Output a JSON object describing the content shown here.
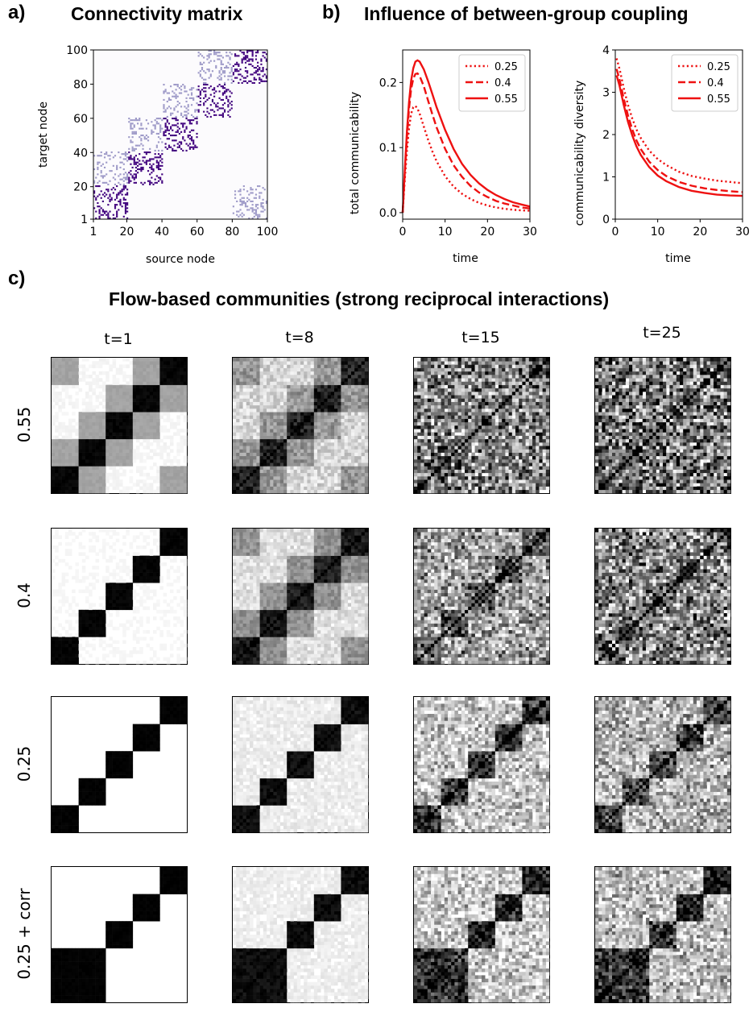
{
  "panels": {
    "a": {
      "letter": "a)",
      "title": "Connectivity matrix"
    },
    "b": {
      "letter": "b)",
      "title": "Influence of between-group coupling"
    },
    "c": {
      "letter": "c)",
      "title": "Flow-based communities (strong reciprocal interactions)"
    }
  },
  "chart_data": [
    {
      "type": "heatmap",
      "id": "connectivity-matrix",
      "title": "Connectivity matrix",
      "xlabel": "source node",
      "ylabel": "target node",
      "x_ticks": [
        "1",
        "20",
        "40",
        "60",
        "80",
        "100"
      ],
      "y_ticks": [
        "1",
        "20",
        "40",
        "60",
        "80",
        "100"
      ],
      "xlim": [
        1,
        100
      ],
      "ylim": [
        1,
        100
      ],
      "n_nodes": 100,
      "n_groups": 5,
      "group_size": 20,
      "colors": {
        "strong": "#3f007d",
        "weak": "#9e9ac8",
        "background": "#fcfbfd"
      }
    },
    {
      "type": "line",
      "id": "total-communicability",
      "xlabel": "time",
      "ylabel": "total communicability",
      "xlim": [
        0,
        30
      ],
      "ylim": [
        -0.01,
        0.25
      ],
      "x_ticks": [
        "0",
        "10",
        "20",
        "30"
      ],
      "y_ticks": [
        "0.0",
        "0.1",
        "0.2"
      ],
      "legend": "top-right",
      "color": "#ee1111",
      "series": [
        {
          "name": "0.25",
          "style": "dotted",
          "x": [
            0,
            0.5,
            1,
            1.5,
            2,
            2.5,
            3,
            3.5,
            4,
            5,
            6,
            7,
            8,
            10,
            12,
            14,
            16,
            18,
            20,
            22,
            24,
            26,
            28,
            30
          ],
          "values": [
            0,
            0.05,
            0.095,
            0.13,
            0.152,
            0.162,
            0.164,
            0.16,
            0.152,
            0.132,
            0.112,
            0.094,
            0.079,
            0.056,
            0.04,
            0.029,
            0.021,
            0.015,
            0.011,
            0.008,
            0.006,
            0.0045,
            0.0035,
            0.003
          ]
        },
        {
          "name": "0.4",
          "style": "dashed",
          "x": [
            0,
            0.5,
            1,
            1.5,
            2,
            2.5,
            3,
            3.5,
            4,
            5,
            6,
            7,
            8,
            10,
            12,
            14,
            16,
            18,
            20,
            22,
            24,
            26,
            28,
            30
          ],
          "values": [
            0,
            0.06,
            0.115,
            0.16,
            0.19,
            0.206,
            0.213,
            0.214,
            0.21,
            0.194,
            0.172,
            0.151,
            0.131,
            0.098,
            0.073,
            0.055,
            0.041,
            0.031,
            0.024,
            0.018,
            0.014,
            0.011,
            0.008,
            0.0065
          ]
        },
        {
          "name": "0.55",
          "style": "solid",
          "x": [
            0,
            0.5,
            1,
            1.5,
            2,
            2.5,
            3,
            3.5,
            4,
            5,
            6,
            7,
            8,
            10,
            12,
            14,
            16,
            18,
            20,
            22,
            24,
            26,
            28,
            30
          ],
          "values": [
            0,
            0.065,
            0.125,
            0.17,
            0.203,
            0.222,
            0.232,
            0.234,
            0.232,
            0.22,
            0.202,
            0.182,
            0.162,
            0.127,
            0.098,
            0.075,
            0.058,
            0.045,
            0.035,
            0.027,
            0.021,
            0.016,
            0.0125,
            0.0095
          ]
        }
      ]
    },
    {
      "type": "line",
      "id": "communicability-diversity",
      "xlabel": "time",
      "ylabel": "communicability diversity",
      "xlim": [
        0,
        30
      ],
      "ylim": [
        0,
        4
      ],
      "x_ticks": [
        "0",
        "10",
        "20",
        "30"
      ],
      "y_ticks": [
        "0",
        "1",
        "2",
        "3",
        "4"
      ],
      "legend": "top-right",
      "color": "#ee1111",
      "series": [
        {
          "name": "0.25",
          "style": "dotted",
          "x": [
            0.3,
            1,
            2,
            3,
            4,
            5,
            6,
            8,
            10,
            12,
            15,
            18,
            21,
            24,
            27,
            30
          ],
          "values": [
            3.8,
            3.55,
            3.1,
            2.7,
            2.38,
            2.12,
            1.92,
            1.62,
            1.42,
            1.28,
            1.12,
            1.02,
            0.96,
            0.91,
            0.88,
            0.85
          ]
        },
        {
          "name": "0.4",
          "style": "dashed",
          "x": [
            0.3,
            1,
            2,
            3,
            4,
            5,
            6,
            8,
            10,
            12,
            15,
            18,
            21,
            24,
            27,
            30
          ],
          "values": [
            3.55,
            3.3,
            2.85,
            2.45,
            2.12,
            1.86,
            1.66,
            1.36,
            1.16,
            1.02,
            0.88,
            0.79,
            0.73,
            0.69,
            0.66,
            0.64
          ]
        },
        {
          "name": "0.55",
          "style": "solid",
          "x": [
            0.3,
            1,
            2,
            3,
            4,
            5,
            6,
            8,
            10,
            12,
            15,
            18,
            21,
            24,
            27,
            30
          ],
          "values": [
            3.4,
            3.15,
            2.7,
            2.3,
            1.98,
            1.72,
            1.52,
            1.23,
            1.03,
            0.9,
            0.76,
            0.67,
            0.62,
            0.58,
            0.56,
            0.55
          ]
        }
      ]
    },
    {
      "type": "heatmap",
      "id": "flow-communities",
      "title": "Flow-based communities (strong reciprocal interactions)",
      "columns": [
        "t=1",
        "t=8",
        "t=15",
        "t=25"
      ],
      "rows": [
        "0.55",
        "0.4",
        "0.25",
        "0.25 + corr"
      ],
      "n_nodes": 100,
      "colors": {
        "high": "#000000",
        "low": "#ffffff"
      }
    }
  ]
}
